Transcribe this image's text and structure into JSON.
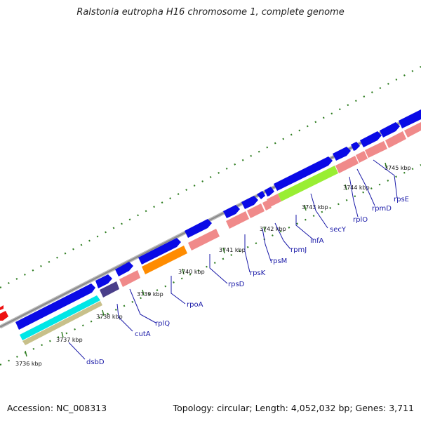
{
  "title": "Ralstonia eutropha H16 chromosome 1, complete genome",
  "footer": {
    "accession": "Accession: NC_008313",
    "topology": "Topology: circular; Length: 4,052,032 bp; Genes: 3,711"
  },
  "colors": {
    "backbone": "#999999",
    "forward_gene": "#0a0ae6",
    "rrna_like": "#f08a8a",
    "cyan": "#00e6e6",
    "tan": "#c8c08a",
    "dark_blue": "#4a3f8a",
    "orange": "#ff8c00",
    "green": "#99ee33",
    "red": "#ee1111",
    "dots": "#2e7d20",
    "label": "#1a1aa8"
  },
  "kbp_labels": [
    "3736 kbp",
    "3737 kbp",
    "3738 kbp",
    "3739 kbp",
    "3740 kbp",
    "3741 kbp",
    "3742 kbp",
    "3743 kbp",
    "3744 kbp",
    "3745 kbp"
  ],
  "gene_labels": [
    "dsbD",
    "cutA",
    "rplQ",
    "rpoA",
    "rpsD",
    "rpsK",
    "rpsM",
    "rpmJ",
    "infA",
    "secY",
    "rplO",
    "rpmD",
    "rpsE"
  ]
}
